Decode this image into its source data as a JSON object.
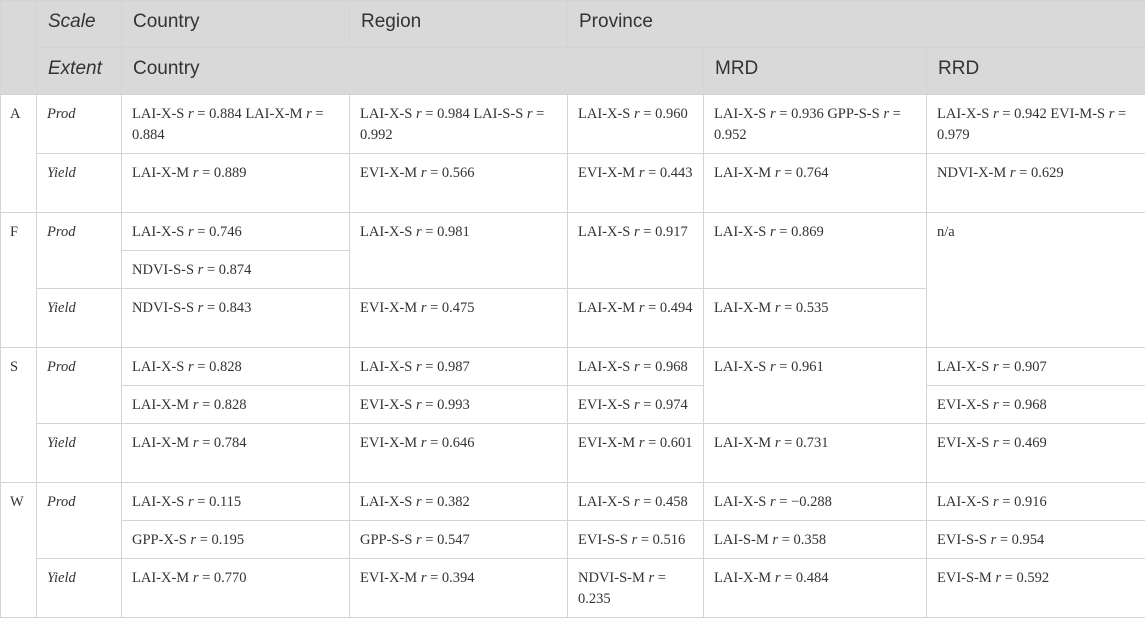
{
  "header": {
    "scale_label": "Scale",
    "extent_label": "Extent",
    "scale_cols": [
      "Country",
      "Region",
      "Province"
    ],
    "extent_cols": [
      "Country",
      "MRD",
      "RRD"
    ]
  },
  "groups": [
    {
      "code": "A",
      "prod_label": "Prod",
      "yield_label": "Yield",
      "prod": [
        [
          "LAI-X-S r = 0.884 LAI-X-M r = 0.884"
        ],
        [
          "LAI-X-S r = 0.984 LAI-S-S r = 0.992"
        ],
        [
          "LAI-X-S r = 0.960"
        ],
        [
          "LAI-X-S r = 0.936 GPP-S-S r = 0.952"
        ],
        [
          "LAI-X-S r = 0.942 EVI-M-S r = 0.979"
        ]
      ],
      "yield": [
        "LAI-X-M r = 0.889",
        "EVI-X-M r = 0.566",
        "EVI-X-M r = 0.443",
        "LAI-X-M r = 0.764",
        "NDVI-X-M r = 0.629"
      ]
    },
    {
      "code": "F",
      "prod_label": "Prod",
      "yield_label": "Yield",
      "prod": [
        [
          "LAI-X-S r = 0.746",
          "NDVI-S-S r = 0.874"
        ],
        [
          "LAI-X-S r = 0.981"
        ],
        [
          "LAI-X-S r = 0.917"
        ],
        [
          "LAI-X-S r = 0.869"
        ],
        [
          "n/a"
        ]
      ],
      "yield": [
        "NDVI-S-S r = 0.843",
        "EVI-X-M r = 0.475",
        "LAI-X-M r = 0.494",
        "LAI-X-M r = 0.535",
        ""
      ]
    },
    {
      "code": "S",
      "prod_label": "Prod",
      "yield_label": "Yield",
      "prod": [
        [
          "LAI-X-S r = 0.828",
          "LAI-X-M r = 0.828"
        ],
        [
          "LAI-X-S r = 0.987",
          "EVI-X-S r = 0.993"
        ],
        [
          "LAI-X-S r = 0.968",
          "EVI-X-S r = 0.974"
        ],
        [
          "LAI-X-S r = 0.961"
        ],
        [
          "LAI-X-S r = 0.907",
          "EVI-X-S r = 0.968"
        ]
      ],
      "yield": [
        "LAI-X-M r = 0.784",
        "EVI-X-M r = 0.646",
        "EVI-X-M r = 0.601",
        "LAI-X-M r = 0.731",
        "EVI-X-S r = 0.469"
      ]
    },
    {
      "code": "W",
      "prod_label": "Prod",
      "yield_label": "Yield",
      "prod": [
        [
          "LAI-X-S r = 0.115",
          "GPP-X-S r = 0.195"
        ],
        [
          "LAI-X-S r = 0.382",
          "GPP-S-S r = 0.547"
        ],
        [
          "LAI-X-S r = 0.458",
          "EVI-S-S r = 0.516"
        ],
        [
          "LAI-X-S r = −0.288",
          "LAI-S-M r = 0.358"
        ],
        [
          "LAI-X-S r = 0.916",
          "EVI-S-S r = 0.954"
        ]
      ],
      "yield": [
        "LAI-X-M r = 0.770",
        "EVI-X-M r = 0.394",
        "NDVI-S-M r = 0.235",
        "LAI-X-M r = 0.484",
        "EVI-S-M r = 0.592"
      ]
    }
  ]
}
